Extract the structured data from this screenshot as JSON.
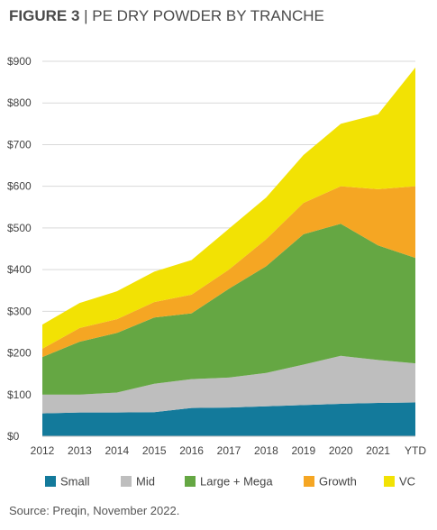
{
  "figure": {
    "label": "FIGURE 3",
    "separator": " | ",
    "title": "PE DRY POWDER BY TRANCHE"
  },
  "source": "Source: Preqin, November 2022.",
  "colors": {
    "Small": "#137a9b",
    "Mid": "#bebebe",
    "Large + Mega": "#65a743",
    "Growth": "#f5a623",
    "VC": "#f2e204",
    "gridline": "#d9d9d9",
    "text": "#444444"
  },
  "chart_data": {
    "type": "area",
    "stacked": true,
    "categories": [
      "2012",
      "2013",
      "2014",
      "2015",
      "2016",
      "2017",
      "2018",
      "2019",
      "2020",
      "2021",
      "YTD"
    ],
    "series": [
      {
        "name": "Small",
        "values": [
          55,
          57,
          57,
          58,
          68,
          69,
          72,
          75,
          78,
          80,
          81
        ]
      },
      {
        "name": "Mid",
        "values": [
          45,
          43,
          48,
          68,
          69,
          72,
          80,
          97,
          115,
          103,
          94
        ]
      },
      {
        "name": "Large + Mega",
        "values": [
          90,
          127,
          143,
          159,
          158,
          213,
          256,
          313,
          317,
          275,
          253
        ]
      },
      {
        "name": "Growth",
        "values": [
          20,
          33,
          33,
          37,
          45,
          46,
          65,
          75,
          90,
          135,
          172
        ]
      },
      {
        "name": "VC",
        "values": [
          58,
          60,
          67,
          73,
          83,
          98,
          100,
          115,
          150,
          180,
          285
        ]
      }
    ],
    "y_ticks": [
      "$0",
      "$100",
      "$200",
      "$300",
      "$400",
      "$500",
      "$600",
      "$700",
      "$800",
      "$900"
    ],
    "ylim": [
      0,
      900
    ],
    "grid": true,
    "legend_position": "bottom"
  }
}
